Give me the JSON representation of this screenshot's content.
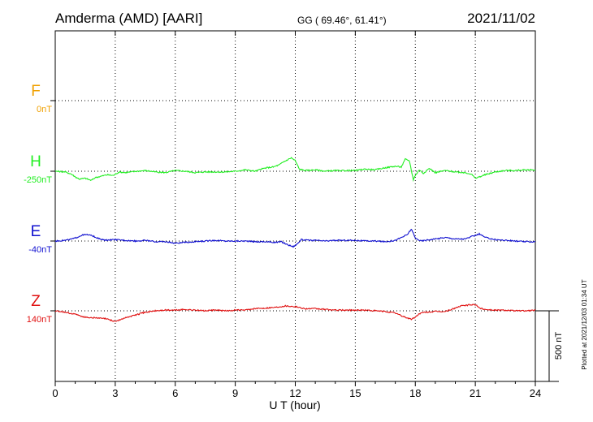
{
  "header": {
    "station": "Amderma (AMD)  [AARI]",
    "coords": "GG ( 69.46°,  61.41°)",
    "date": "2021/11/02"
  },
  "footer": {
    "plotted": "Plotted at 2021/12/03 01:34 UT"
  },
  "colors": {
    "F": "#f0a000",
    "H": "#22ee22",
    "E": "#1010d0",
    "Z": "#e01010",
    "axis": "#000000"
  },
  "chart_data": {
    "type": "line",
    "xlabel": "U T (hour)",
    "xlim": [
      0,
      24
    ],
    "xticks": [
      "0",
      "3",
      "6",
      "9",
      "12",
      "15",
      "18",
      "21",
      "24"
    ],
    "scale_label": "500 nT",
    "scale_nT": 500,
    "channels": [
      {
        "name": "F",
        "base_label": "0nT",
        "baseline_row": 1,
        "x": [],
        "y": []
      },
      {
        "name": "H",
        "base_label": "-250nT",
        "baseline_row": 2,
        "x": [
          0,
          0.5,
          0.8,
          1.0,
          1.2,
          1.5,
          1.8,
          2.0,
          2.3,
          2.6,
          2.9,
          3.2,
          3.5,
          3.8,
          4.1,
          4.5,
          5.0,
          5.5,
          6.0,
          6.5,
          7.0,
          7.5,
          8.0,
          8.5,
          9.0,
          9.5,
          10.0,
          10.3,
          10.6,
          10.9,
          11.2,
          11.4,
          11.6,
          11.8,
          12.0,
          12.2,
          12.5,
          13.0,
          13.5,
          14.0,
          14.5,
          15.0,
          15.5,
          16.0,
          16.5,
          17.0,
          17.3,
          17.5,
          17.7,
          17.8,
          17.9,
          18.0,
          18.2,
          18.4,
          18.7,
          19.0,
          19.5,
          20.0,
          20.5,
          20.8,
          21.0,
          21.2,
          21.5,
          22.0,
          22.5,
          23.0,
          23.5,
          24.0
        ],
        "y": [
          0,
          -5,
          -20,
          -40,
          -55,
          -50,
          -65,
          -45,
          -35,
          -25,
          -30,
          -5,
          -10,
          -5,
          0,
          5,
          -5,
          -10,
          5,
          0,
          -10,
          -5,
          -5,
          -5,
          0,
          10,
          0,
          15,
          25,
          30,
          45,
          65,
          80,
          95,
          75,
          15,
          5,
          10,
          0,
          5,
          5,
          5,
          15,
          10,
          25,
          35,
          30,
          85,
          75,
          10,
          -60,
          -30,
          10,
          -15,
          20,
          -10,
          5,
          -5,
          -10,
          -20,
          -50,
          -40,
          -25,
          -5,
          5,
          5,
          10,
          10
        ]
      },
      {
        "name": "E",
        "base_label": "-40nT",
        "baseline_row": 3,
        "x": [
          0,
          0.5,
          1.0,
          1.3,
          1.6,
          1.9,
          2.2,
          2.5,
          3.0,
          3.5,
          4.0,
          4.5,
          5.0,
          5.5,
          6.0,
          6.5,
          7.0,
          7.5,
          8.0,
          8.5,
          9.0,
          9.5,
          10.0,
          10.5,
          11.0,
          11.3,
          11.6,
          11.9,
          12.1,
          12.3,
          12.6,
          13.0,
          13.5,
          14.0,
          14.5,
          15.0,
          15.5,
          16.0,
          16.5,
          17.0,
          17.3,
          17.6,
          17.8,
          18.0,
          18.3,
          18.7,
          19.0,
          19.5,
          20.0,
          20.5,
          20.9,
          21.2,
          21.5,
          22.0,
          22.5,
          23.0,
          23.5,
          24.0
        ],
        "y": [
          0,
          5,
          20,
          40,
          45,
          35,
          15,
          5,
          10,
          5,
          0,
          5,
          -5,
          -5,
          -15,
          -10,
          -5,
          0,
          5,
          0,
          0,
          0,
          -5,
          -5,
          -10,
          -5,
          -25,
          -40,
          -20,
          10,
          5,
          5,
          0,
          5,
          5,
          5,
          0,
          0,
          -5,
          5,
          25,
          45,
          85,
          20,
          0,
          10,
          15,
          25,
          15,
          15,
          35,
          50,
          25,
          10,
          5,
          0,
          -5,
          -5
        ]
      },
      {
        "name": "Z",
        "base_label": "140nT",
        "baseline_row": 4,
        "x": [
          0,
          0.5,
          1.0,
          1.5,
          2.0,
          2.5,
          3.0,
          3.3,
          3.6,
          4.0,
          4.5,
          5.0,
          5.5,
          6.0,
          6.5,
          7.0,
          7.5,
          8.0,
          8.5,
          9.0,
          9.5,
          10.0,
          10.5,
          11.0,
          11.5,
          12.0,
          12.5,
          13.0,
          13.5,
          14.0,
          14.5,
          15.0,
          15.5,
          16.0,
          16.5,
          17.0,
          17.3,
          17.6,
          17.8,
          18.0,
          18.2,
          18.5,
          19.0,
          19.5,
          20.0,
          20.3,
          20.6,
          21.0,
          21.2,
          21.5,
          22.0,
          22.5,
          23.0,
          23.5,
          24.0
        ],
        "y": [
          0,
          -10,
          -25,
          -45,
          -50,
          -55,
          -75,
          -60,
          -45,
          -30,
          -10,
          0,
          5,
          5,
          10,
          5,
          0,
          5,
          0,
          5,
          5,
          15,
          20,
          25,
          35,
          30,
          15,
          15,
          10,
          5,
          5,
          5,
          5,
          0,
          -5,
          -15,
          -35,
          -50,
          -60,
          -45,
          -20,
          -10,
          -5,
          -5,
          20,
          35,
          40,
          45,
          20,
          10,
          5,
          5,
          0,
          0,
          5
        ]
      }
    ]
  }
}
